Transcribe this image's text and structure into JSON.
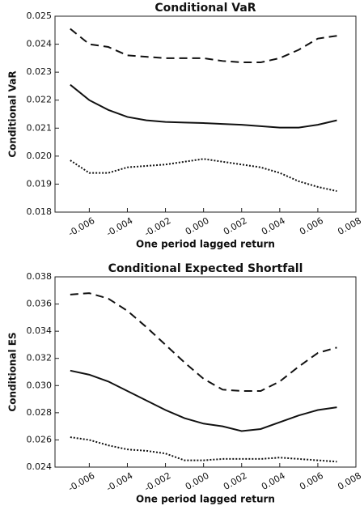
{
  "chart_data": [
    {
      "type": "line",
      "title": "Conditional VaR",
      "x_label": "One period lagged return",
      "y_label": "Conditional VaR",
      "x": [
        -0.007,
        -0.006,
        -0.005,
        -0.004,
        -0.003,
        -0.002,
        -0.001,
        0,
        0.001,
        0.002,
        0.003,
        0.004,
        0.005,
        0.006,
        0.007
      ],
      "series": [
        {
          "color": "#111111",
          "dash": "dashed",
          "values": [
            0.02455,
            0.024,
            0.0239,
            0.0236,
            0.02355,
            0.0235,
            0.0235,
            0.0235,
            0.0234,
            0.02335,
            0.02335,
            0.0235,
            0.0238,
            0.0242,
            0.0243
          ]
        },
        {
          "color": "#111111",
          "dash": "solid",
          "values": [
            0.02255,
            0.022,
            0.02165,
            0.0214,
            0.02128,
            0.02122,
            0.0212,
            0.02118,
            0.02115,
            0.02112,
            0.02107,
            0.02102,
            0.02102,
            0.02112,
            0.02128
          ]
        },
        {
          "color": "#111111",
          "dash": "dotted",
          "values": [
            0.01985,
            0.0194,
            0.0194,
            0.0196,
            0.01965,
            0.0197,
            0.0198,
            0.0199,
            0.0198,
            0.0197,
            0.0196,
            0.0194,
            0.0191,
            0.0189,
            0.01875
          ]
        }
      ],
      "xlim": [
        -0.0078,
        0.008
      ],
      "ylim": [
        0.018,
        0.025
      ],
      "xticks": [
        -0.006,
        -0.004,
        -0.002,
        {
          "value": 0,
          "label": "0.000"
        },
        0.002,
        0.004,
        0.006,
        0.008
      ],
      "yticks": [
        0.018,
        0.019,
        {
          "value": 0.02,
          "label": "0.020"
        },
        0.021,
        0.022,
        0.023,
        0.024,
        0.025
      ]
    },
    {
      "type": "line",
      "title": "Conditional Expected Shortfall",
      "x_label": "One period lagged return",
      "y_label": "Conditional ES",
      "x": [
        -0.007,
        -0.006,
        -0.005,
        -0.004,
        -0.003,
        -0.002,
        -0.001,
        0,
        0.001,
        0.002,
        0.003,
        0.004,
        0.005,
        0.006,
        0.007
      ],
      "series": [
        {
          "color": "#111111",
          "dash": "dashed",
          "values": [
            0.0367,
            0.0368,
            0.0364,
            0.0355,
            0.0343,
            0.033,
            0.0317,
            0.0305,
            0.0297,
            0.0296,
            0.0296,
            0.0303,
            0.0314,
            0.0324,
            0.0328
          ]
        },
        {
          "color": "#111111",
          "dash": "solid",
          "values": [
            0.0311,
            0.0308,
            0.0303,
            0.0296,
            0.0289,
            0.0282,
            0.0276,
            0.0272,
            0.027,
            0.02665,
            0.0268,
            0.0273,
            0.0278,
            0.0282,
            0.0284
          ]
        },
        {
          "color": "#111111",
          "dash": "dotted",
          "values": [
            0.0262,
            0.026,
            0.0256,
            0.0253,
            0.0252,
            0.025,
            0.0245,
            0.0245,
            0.0246,
            0.0246,
            0.0246,
            0.0247,
            0.0246,
            0.0245,
            0.0244
          ]
        }
      ],
      "xlim": [
        -0.0078,
        0.008
      ],
      "ylim": [
        0.024,
        0.038
      ],
      "xticks": [
        -0.006,
        -0.004,
        -0.002,
        {
          "value": 0,
          "label": "0.000"
        },
        0.002,
        0.004,
        0.006,
        0.008
      ],
      "yticks": [
        0.024,
        0.026,
        0.028,
        {
          "value": 0.03,
          "label": "0.030"
        },
        0.032,
        0.034,
        0.036,
        0.038
      ]
    }
  ]
}
